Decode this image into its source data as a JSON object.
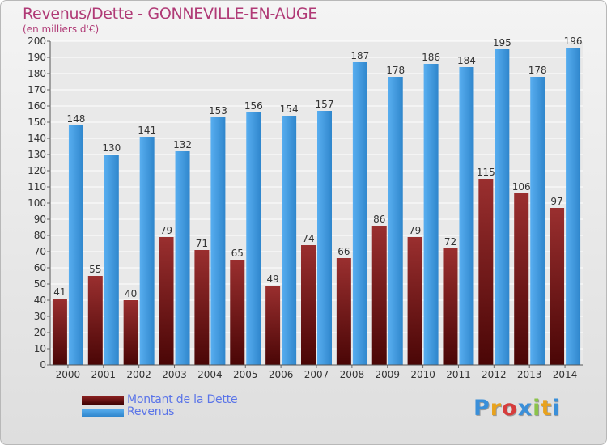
{
  "header": {
    "title": "Revenus/Dette - GONNEVILLE-EN-AUGE",
    "subtitle": "(en milliers d'€)"
  },
  "colors": {
    "title": "#b03a76",
    "debt": "#7a1a1a",
    "revenue": "#3d98db",
    "legend_text": "#5a74e8"
  },
  "chart_data": {
    "type": "bar",
    "title": "Revenus/Dette - GONNEVILLE-EN-AUGE",
    "subtitle": "(en milliers d'€)",
    "categories": [
      "2000",
      "2001",
      "2002",
      "2003",
      "2004",
      "2005",
      "2006",
      "2007",
      "2008",
      "2009",
      "2010",
      "2011",
      "2012",
      "2013",
      "2014"
    ],
    "series": [
      {
        "name": "Montant de la Dette",
        "color": "#7a1a1a",
        "values": [
          41,
          55,
          40,
          79,
          71,
          65,
          49,
          74,
          66,
          86,
          79,
          72,
          115,
          106,
          97
        ]
      },
      {
        "name": "Revenus",
        "color": "#3d98db",
        "values": [
          148,
          130,
          141,
          132,
          153,
          156,
          154,
          157,
          187,
          178,
          186,
          184,
          195,
          178,
          196
        ]
      }
    ],
    "ylim": [
      0,
      200
    ],
    "yticks": [
      0,
      10,
      20,
      30,
      40,
      50,
      60,
      70,
      80,
      90,
      100,
      110,
      120,
      130,
      140,
      150,
      160,
      170,
      180,
      190,
      200
    ],
    "grid": true,
    "legend_position": "bottom-left"
  },
  "legend": {
    "debt_label": "Montant de la Dette",
    "revenue_label": "Revenus"
  },
  "logo": {
    "letters": [
      "P",
      "r",
      "o",
      "x",
      "i",
      "t",
      "i"
    ],
    "colors": [
      "#3a8fd9",
      "#e8a21d",
      "#d63c3c",
      "#3a8fd9",
      "#8bc34a",
      "#e8a21d",
      "#3a8fd9"
    ]
  }
}
